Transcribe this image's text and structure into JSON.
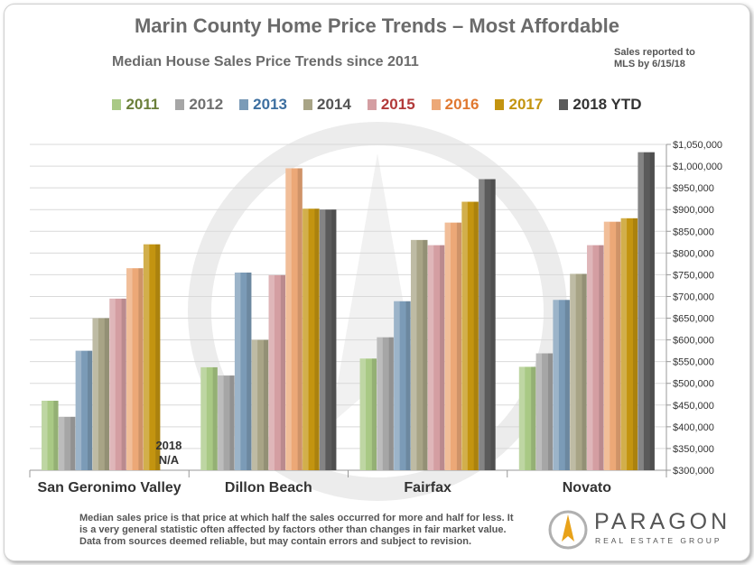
{
  "title": "Marin County Home Price Trends – Most Affordable",
  "subtitle": "Median House Sales Price Trends since 2011",
  "note_line1": "Sales reported to",
  "note_line2": "MLS by 6/15/18",
  "footer": "Median sales price is that price at which half the sales occurred for more and half for less. It is a very general statistic often affected by factors other than changes in fair market value. Data from sources deemed reliable, but may contain errors and subject to revision.",
  "logo": {
    "word": "PARAGON",
    "sub": "REAL ESTATE GROUP"
  },
  "na_label_line1": "2018",
  "na_label_line2": "N/A",
  "colors": {
    "2011": "#a9c985",
    "2012": "#a6a6a6",
    "2013": "#7b9bb7",
    "2014": "#a8a486",
    "2015": "#d49ea2",
    "2016": "#eca877",
    "2017": "#c39410",
    "2018 YTD": "#5b5b5b"
  },
  "legend_text_colors": {
    "2011": "#6b7f3a",
    "2012": "#707070",
    "2013": "#3d6fa0",
    "2014": "#555555",
    "2015": "#b23a3a",
    "2016": "#e07830",
    "2017": "#c39410",
    "2018 YTD": "#333333"
  },
  "chart_data": {
    "type": "bar",
    "title": "Marin County Home Price Trends – Most Affordable",
    "subtitle": "Median House Sales Price Trends since 2011",
    "categories": [
      "San Geronimo Valley",
      "Dillon Beach",
      "Fairfax",
      "Novato"
    ],
    "series": [
      {
        "name": "2011",
        "values": [
          460000,
          537000,
          557000,
          538000
        ]
      },
      {
        "name": "2012",
        "values": [
          423000,
          518000,
          606000,
          569000
        ]
      },
      {
        "name": "2013",
        "values": [
          575000,
          755000,
          689000,
          692000
        ]
      },
      {
        "name": "2014",
        "values": [
          650000,
          600000,
          830000,
          752000
        ]
      },
      {
        "name": "2015",
        "values": [
          695000,
          749000,
          818000,
          818000
        ]
      },
      {
        "name": "2016",
        "values": [
          765000,
          995000,
          870000,
          872000
        ]
      },
      {
        "name": "2017",
        "values": [
          820000,
          902000,
          918000,
          880000
        ]
      },
      {
        "name": "2018 YTD",
        "values": [
          null,
          900000,
          970000,
          1032000
        ]
      }
    ],
    "ylim": [
      300000,
      1050000
    ],
    "yticks": [
      300000,
      350000,
      400000,
      450000,
      500000,
      550000,
      600000,
      650000,
      700000,
      750000,
      800000,
      850000,
      900000,
      950000,
      1000000,
      1050000
    ],
    "ytick_labels": [
      "$300,000",
      "$350,000",
      "$400,000",
      "$450,000",
      "$500,000",
      "$550,000",
      "$600,000",
      "$650,000",
      "$700,000",
      "$750,000",
      "$800,000",
      "$850,000",
      "$900,000",
      "$950,000",
      "$1,000,000",
      "$1,050,000"
    ],
    "grid": true,
    "legend": "top"
  }
}
